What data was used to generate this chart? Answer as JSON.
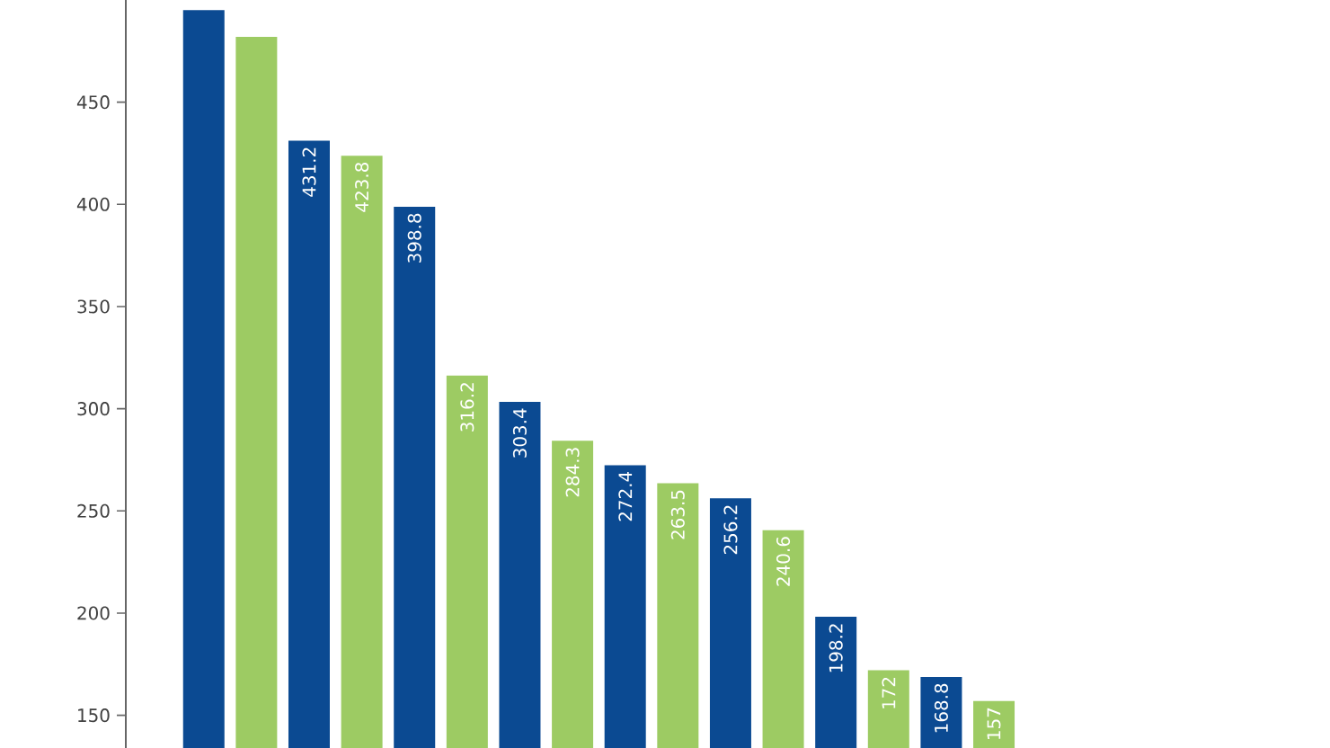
{
  "chart_data": {
    "type": "bar",
    "categories": [
      null,
      null,
      null,
      null,
      null,
      null,
      null,
      null,
      null,
      null,
      null,
      null,
      null,
      null,
      null,
      null
    ],
    "values": [
      495,
      482,
      431.2,
      423.8,
      398.8,
      316.2,
      303.4,
      284.3,
      272.4,
      263.5,
      256.2,
      240.6,
      198.2,
      172,
      168.8,
      157
    ],
    "colors": [
      "#0b4a92",
      "#9dcb63",
      "#0b4a92",
      "#9dcb63",
      "#0b4a92",
      "#9dcb63",
      "#0b4a92",
      "#9dcb63",
      "#0b4a92",
      "#9dcb63",
      "#0b4a92",
      "#9dcb63",
      "#0b4a92",
      "#9dcb63",
      "#0b4a92",
      "#9dcb63"
    ],
    "value_labels": [
      null,
      null,
      "431.2",
      "423.8",
      "398.8",
      "316.2",
      "303.4",
      "284.3",
      "272.4",
      "263.5",
      "256.2",
      "240.6",
      "198.2",
      "172",
      "168.8",
      "157"
    ],
    "ylim": [
      134,
      500
    ],
    "yticks": [
      150,
      200,
      250,
      300,
      350,
      400,
      450
    ],
    "tick_labels": "y"
  }
}
